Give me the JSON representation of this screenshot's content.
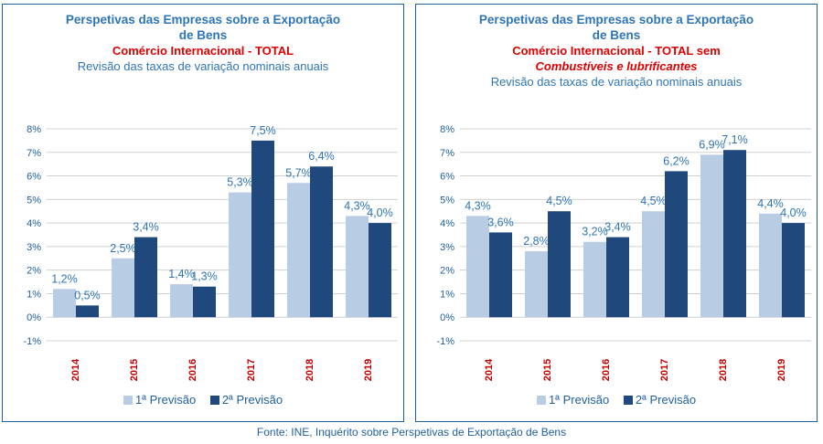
{
  "colors": {
    "series1": "#b8cce4",
    "series2": "#1f497d",
    "grid": "#d0d0d0",
    "text": "#2e75b6",
    "year": "#c00000",
    "axis": "#1f5f9c"
  },
  "legend": {
    "series1": "1ª Previsão",
    "series2": "2ª Previsão"
  },
  "footer": "Fonte: INE, Inquérito sobre Perspetivas de Exportação de Bens",
  "chart_data": [
    {
      "type": "bar",
      "title_line1": "Perspetivas das Empresas sobre a Exportação",
      "title_line2": "de Bens",
      "subtitle_red": "Comércio Internacional  - TOTAL",
      "subtitle": "Revisão das taxas de variação nominais anuais",
      "categories": [
        "2014",
        "2015",
        "2016",
        "2017",
        "2018",
        "2019"
      ],
      "series": [
        {
          "name": "1ª Previsão",
          "values": [
            1.2,
            2.5,
            1.4,
            5.3,
            5.7,
            4.3
          ],
          "labels": [
            "1,2%",
            "2,5%",
            "1,4%",
            "5,3%",
            "5,7%",
            "4,3%"
          ]
        },
        {
          "name": "2ª Previsão",
          "values": [
            0.5,
            3.4,
            1.3,
            7.5,
            6.4,
            4.0
          ],
          "labels": [
            "0,5%",
            "3,4%",
            "1,3%",
            "7,5%",
            "6,4%",
            "4,0%"
          ]
        }
      ],
      "yticks": [
        -1,
        0,
        1,
        2,
        3,
        4,
        5,
        6,
        7,
        8
      ],
      "ytick_labels": [
        "-1%",
        "0%",
        "1%",
        "2%",
        "3%",
        "4%",
        "5%",
        "6%",
        "7%",
        "8%"
      ],
      "ylim": [
        -1,
        8
      ],
      "grid": true,
      "legend_position": "bottom"
    },
    {
      "type": "bar",
      "title_line1": "Perspetivas das Empresas sobre a Exportação",
      "title_line2": "de Bens",
      "subtitle_red": "Comércio Internacional  - TOTAL sem",
      "subtitle_red2": "Combustíveis e lubrificantes",
      "subtitle": "Revisão das taxas de variação nominais anuais",
      "categories": [
        "2014",
        "2015",
        "2016",
        "2017",
        "2018",
        "2019"
      ],
      "series": [
        {
          "name": "1ª Previsão",
          "values": [
            4.3,
            2.8,
            3.2,
            4.5,
            6.9,
            4.4
          ],
          "labels": [
            "4,3%",
            "2,8%",
            "3,2%",
            "4,5%",
            "6,9%",
            "4,4%"
          ]
        },
        {
          "name": "2ª Previsão",
          "values": [
            3.6,
            4.5,
            3.4,
            6.2,
            7.1,
            4.0
          ],
          "labels": [
            "3,6%",
            "4,5%",
            "3,4%",
            "6,2%",
            "7,1%",
            "4,0%"
          ]
        }
      ],
      "yticks": [
        -1,
        0,
        1,
        2,
        3,
        4,
        5,
        6,
        7,
        8
      ],
      "ytick_labels": [
        "-1%",
        "0%",
        "1%",
        "2%",
        "3%",
        "4%",
        "5%",
        "6%",
        "7%",
        "8%"
      ],
      "ylim": [
        -1,
        8
      ],
      "grid": true,
      "legend_position": "bottom"
    }
  ]
}
